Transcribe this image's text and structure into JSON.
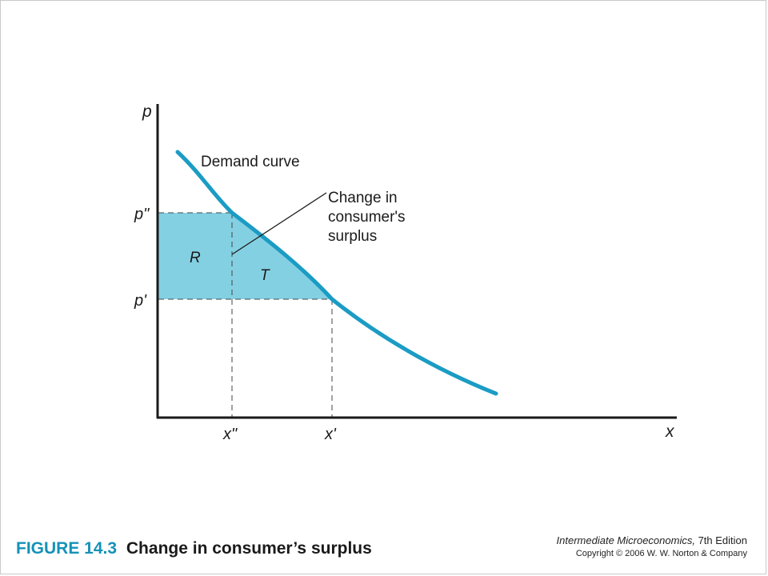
{
  "diagram": {
    "axis_labels": {
      "y": "p",
      "x": "x"
    },
    "price_ticks": {
      "high": "p\"",
      "low": "p'"
    },
    "quantity_ticks": {
      "low": "x\"",
      "high": "x'"
    },
    "curve_label": "Demand curve",
    "annotation": {
      "line1": "Change in",
      "line2": "consumer's",
      "line3": "surplus"
    },
    "region_labels": {
      "rectangle": "R",
      "triangle": "T"
    },
    "colors": {
      "curve": "#1b9cc4",
      "fill": "#84d0e3",
      "axis": "#1a1a1a",
      "dashed": "#444444"
    }
  },
  "footer": {
    "figure_number": "FIGURE 14.3",
    "figure_title": "Change in consumer’s surplus"
  },
  "book_info": {
    "title_italic": "Intermediate Microeconomics,",
    "edition": " 7th Edition",
    "copyright": "Copyright © 2006 W. W. Norton & Company"
  }
}
